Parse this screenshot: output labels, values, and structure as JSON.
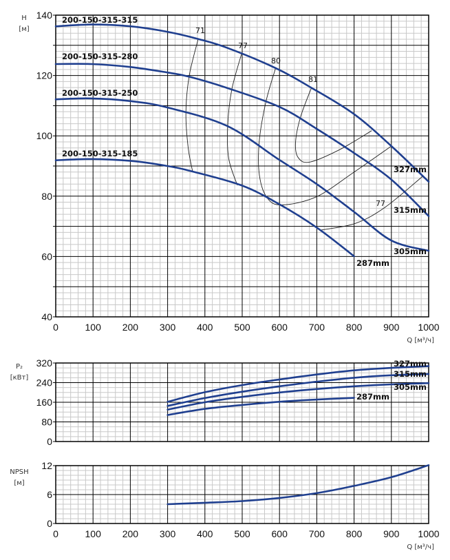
{
  "colors": {
    "curve": "#1f3f8f",
    "grid_major": "#000000",
    "grid_minor": "#c8c8c8",
    "eff": "#222222"
  },
  "x_axis": {
    "label": "Q [м³/ч]",
    "ticks": [
      "0",
      "100",
      "200",
      "300",
      "400",
      "500",
      "600",
      "700",
      "800",
      "900",
      "1000"
    ]
  },
  "chart_data": [
    {
      "type": "line",
      "id": "head",
      "ylabel": [
        "H",
        "[м]"
      ],
      "xlim": [
        0,
        1000
      ],
      "ylim": [
        40,
        140
      ],
      "yticks": [
        "40",
        "60",
        "80",
        "100",
        "120",
        "140"
      ],
      "grid": true,
      "series": [
        {
          "name": "200-150-315-315",
          "end_label": "327mm",
          "points": [
            [
              0,
              136.3
            ],
            [
              96,
              136.9
            ],
            [
              201,
              136.3
            ],
            [
              299,
              134.5
            ],
            [
              382,
              132.1
            ],
            [
              459,
              129.2
            ],
            [
              589,
              122.5
            ],
            [
              686,
              115.9
            ],
            [
              800,
              107.2
            ],
            [
              900,
              96.6
            ],
            [
              1000,
              84.8
            ]
          ]
        },
        {
          "name": "200-150-315-280",
          "end_label": "315mm",
          "points": [
            [
              0,
              123.8
            ],
            [
              96,
              123.8
            ],
            [
              201,
              122.8
            ],
            [
              299,
              121.0
            ],
            [
              358,
              119.6
            ],
            [
              459,
              115.9
            ],
            [
              600,
              109.6
            ],
            [
              700,
              102.3
            ],
            [
              800,
              94.3
            ],
            [
              900,
              85.5
            ],
            [
              1000,
              73.4
            ]
          ]
        },
        {
          "name": "200-150-315-250",
          "end_label": "305mm",
          "points": [
            [
              0,
              112.1
            ],
            [
              96,
              112.4
            ],
            [
              201,
              111.5
            ],
            [
              299,
              109.4
            ],
            [
              459,
              103.3
            ],
            [
              600,
              92.0
            ],
            [
              700,
              84.0
            ],
            [
              800,
              74.8
            ],
            [
              900,
              65.3
            ],
            [
              1000,
              61.9
            ]
          ]
        },
        {
          "name": "200-150-315-185",
          "end_label": "287mm",
          "points": [
            [
              0,
              91.9
            ],
            [
              96,
              92.3
            ],
            [
              201,
              91.7
            ],
            [
              299,
              90.0
            ],
            [
              366,
              88.2
            ],
            [
              500,
              83.5
            ],
            [
              600,
              77.3
            ],
            [
              700,
              69.6
            ],
            [
              800,
              60.1
            ]
          ]
        }
      ],
      "efficiency_lines": [
        {
          "label": "71",
          "points": [
            [
              382,
              132.1
            ],
            [
              358,
              119.9
            ],
            [
              349,
              107.7
            ],
            [
              355,
              96.2
            ],
            [
              367,
              88.2
            ]
          ]
        },
        {
          "label": "77",
          "points": [
            [
              499,
              127.5
            ],
            [
              472,
              115.3
            ],
            [
              461,
              103.1
            ],
            [
              464,
              92.4
            ],
            [
              487,
              83.6
            ]
          ]
        },
        {
          "label": "80",
          "points": [
            [
              589,
              122.2
            ],
            [
              564,
              111.5
            ],
            [
              546,
              98.5
            ],
            [
              546,
              87.1
            ],
            [
              567,
              79.4
            ],
            [
              607,
              77.1
            ],
            [
              699,
              79.8
            ],
            [
              798,
              87.8
            ],
            [
              900,
              96.6
            ]
          ]
        },
        {
          "label": "81",
          "points": [
            [
              686,
              116.0
            ],
            [
              656,
              106.1
            ],
            [
              643,
              97.7
            ],
            [
              650,
              92.8
            ],
            [
              681,
              91.3
            ],
            [
              761,
              95.4
            ],
            [
              847,
              101.7
            ]
          ]
        },
        {
          "label": "77",
          "points": [
            [
              712,
              68.8
            ],
            [
              804,
              71.0
            ],
            [
              884,
              76.4
            ],
            [
              985,
              86.7
            ]
          ]
        }
      ]
    },
    {
      "type": "line",
      "id": "power",
      "ylabel": [
        "P₂",
        "[кВт]"
      ],
      "xlim": [
        0,
        1000
      ],
      "ylim": [
        0,
        320
      ],
      "yticks": [
        "0",
        "80",
        "160",
        "240",
        "320"
      ],
      "grid": true,
      "series": [
        {
          "name": "327mm",
          "points": [
            [
              300,
              162
            ],
            [
              400,
              201
            ],
            [
              500,
              230
            ],
            [
              600,
              253
            ],
            [
              700,
              273
            ],
            [
              800,
              290
            ],
            [
              900,
              300
            ],
            [
              1000,
              307
            ]
          ]
        },
        {
          "name": "315mm",
          "points": [
            [
              300,
              145
            ],
            [
              400,
              177
            ],
            [
              500,
              203
            ],
            [
              600,
              225
            ],
            [
              700,
              244
            ],
            [
              800,
              260
            ],
            [
              900,
              270
            ],
            [
              1000,
              275
            ]
          ]
        },
        {
          "name": "305mm",
          "points": [
            [
              300,
              130
            ],
            [
              400,
              160
            ],
            [
              500,
              182
            ],
            [
              600,
              200
            ],
            [
              700,
              214
            ],
            [
              800,
              225
            ],
            [
              900,
              233
            ],
            [
              1000,
              238
            ]
          ]
        },
        {
          "name": "287mm",
          "points": [
            [
              300,
              108
            ],
            [
              400,
              133
            ],
            [
              500,
              149
            ],
            [
              600,
              162
            ],
            [
              700,
              171
            ],
            [
              800,
              178
            ]
          ]
        }
      ]
    },
    {
      "type": "line",
      "id": "npsh",
      "ylabel": [
        "NPSH",
        "[м]"
      ],
      "xlim": [
        0,
        1000
      ],
      "ylim": [
        0,
        12
      ],
      "yticks": [
        "0",
        "6",
        "12"
      ],
      "grid": true,
      "series": [
        {
          "name": "NPSH",
          "points": [
            [
              300,
              4.0
            ],
            [
              400,
              4.3
            ],
            [
              500,
              4.65
            ],
            [
              600,
              5.3
            ],
            [
              700,
              6.3
            ],
            [
              800,
              7.8
            ],
            [
              900,
              9.6
            ],
            [
              1000,
              12.1
            ]
          ]
        }
      ]
    }
  ]
}
